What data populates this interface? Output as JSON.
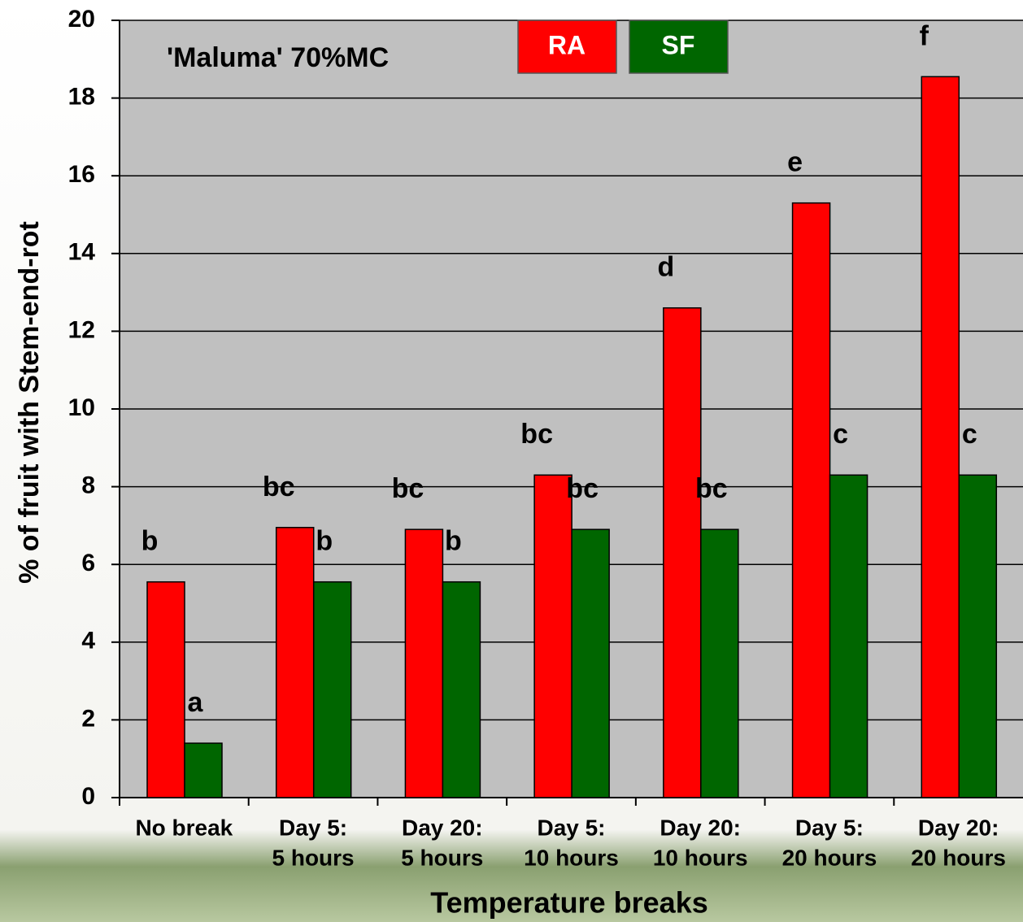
{
  "chart_data": {
    "type": "bar",
    "title": "'Maluma' 70%MC",
    "x_label": "Temperature breaks",
    "y_label": "% of fruit with Stem-end-rot",
    "categories": [
      [
        "No break"
      ],
      [
        "Day 5:",
        "5 hours"
      ],
      [
        "Day 20:",
        "5 hours"
      ],
      [
        "Day 5:",
        "10 hours"
      ],
      [
        "Day 20:",
        "10 hours"
      ],
      [
        "Day 5:",
        "20 hours"
      ],
      [
        "Day 20:",
        "20 hours"
      ]
    ],
    "series": [
      {
        "name": "RA",
        "color": "#ff0000",
        "values": [
          5.55,
          6.95,
          6.9,
          8.3,
          12.6,
          15.3,
          18.55
        ],
        "significance": [
          "b",
          "bc",
          "bc",
          "bc",
          "d",
          "e",
          "f"
        ]
      },
      {
        "name": "SF",
        "color": "#006600",
        "values": [
          1.4,
          5.55,
          5.55,
          6.9,
          6.9,
          8.3,
          8.3
        ],
        "significance": [
          "a",
          "b",
          "b",
          "bc",
          "bc",
          "c",
          "c"
        ]
      }
    ],
    "ylim": [
      0,
      20
    ],
    "yticks": [
      0,
      2,
      4,
      6,
      8,
      10,
      12,
      14,
      16,
      18,
      20
    ],
    "grid": true,
    "legend": "top"
  }
}
